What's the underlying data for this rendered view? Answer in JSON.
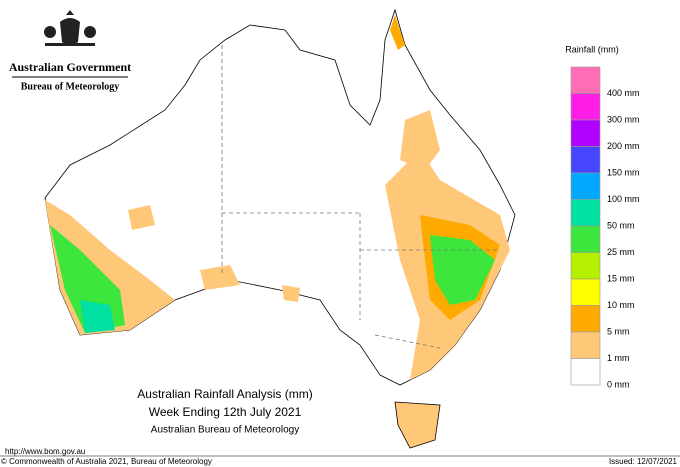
{
  "header": {
    "agency": "Australian Government",
    "bureau": "Bureau of Meteorology"
  },
  "legend": {
    "title": "Rainfall (mm)",
    "items": [
      {
        "color": "#ff6eb4",
        "label": "400 mm"
      },
      {
        "color": "#ff1ee6",
        "label": "300 mm"
      },
      {
        "color": "#b000ff",
        "label": "200 mm"
      },
      {
        "color": "#4646ff",
        "label": "150 mm"
      },
      {
        "color": "#00a8ff",
        "label": "100 mm"
      },
      {
        "color": "#00e0a0",
        "label": "50 mm"
      },
      {
        "color": "#3ce63c",
        "label": "25 mm"
      },
      {
        "color": "#b4f000",
        "label": "15 mm"
      },
      {
        "color": "#ffff00",
        "label": "10 mm"
      },
      {
        "color": "#ffaa00",
        "label": "5 mm"
      },
      {
        "color": "#ffc878",
        "label": "1 mm"
      },
      {
        "color": "#ffffff",
        "label": "0 mm"
      }
    ]
  },
  "titles": [
    "Australian Rainfall Analysis (mm)",
    "Week Ending 12th July 2021",
    "Australian Bureau of Meteorology"
  ],
  "footer": {
    "url": "http://www.bom.gov.au",
    "copyright": "© Commonwealth of Australia 2021, Bureau of Meteorology",
    "issued": "Issued: 12/07/2021"
  }
}
